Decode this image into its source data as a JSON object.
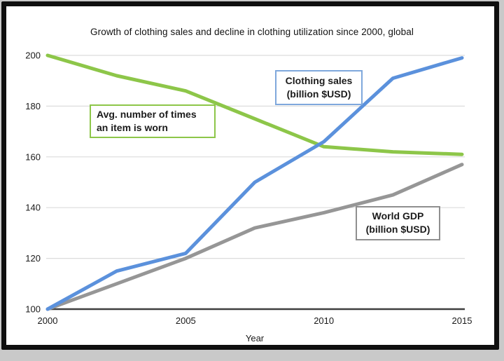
{
  "chart_data": {
    "type": "line",
    "title": "Growth of clothing sales and decline in clothing utilization since 2000, global",
    "xlabel": "Year",
    "x": [
      2000,
      2002.5,
      2005,
      2007.5,
      2010,
      2012.5,
      2015
    ],
    "x_ticks": [
      "2000",
      "2005",
      "2010",
      "2015"
    ],
    "y_ticks": [
      100,
      120,
      140,
      160,
      180,
      200
    ],
    "xlim": [
      2000,
      2015
    ],
    "ylim": [
      100,
      200
    ],
    "grid": "horizontal",
    "legend_position": "in-plot boxed annotations",
    "series": [
      {
        "id": "times-worn",
        "name": "Avg. number of times an item is worn",
        "color": "#8dc649",
        "values": [
          200,
          192,
          186,
          175,
          164,
          162,
          161
        ]
      },
      {
        "id": "world-gdp",
        "name": "World GDP (billion $USD)",
        "color": "#969696",
        "values": [
          100,
          110,
          120,
          132,
          138,
          145,
          157
        ]
      },
      {
        "id": "clothing-sales",
        "name": "Clothing sales (billion $USD)",
        "color": "#5b91dc",
        "values": [
          100,
          115,
          122,
          150,
          166,
          191,
          199
        ]
      }
    ],
    "annotations": {
      "times_worn": {
        "line1": "Avg. number of times",
        "line2": "an item is worn",
        "border_color": "#8dc649"
      },
      "clothing_sales": {
        "line1": "Clothing sales",
        "line2": "(billion $USD)",
        "border_color": "#7fa8dc"
      },
      "world_gdp": {
        "line1": "World GDP",
        "line2": "(billion $USD)",
        "border_color": "#8f8f8f"
      }
    },
    "axis_color": "#3f3f3f",
    "gridline_color": "#dcdcdc"
  }
}
